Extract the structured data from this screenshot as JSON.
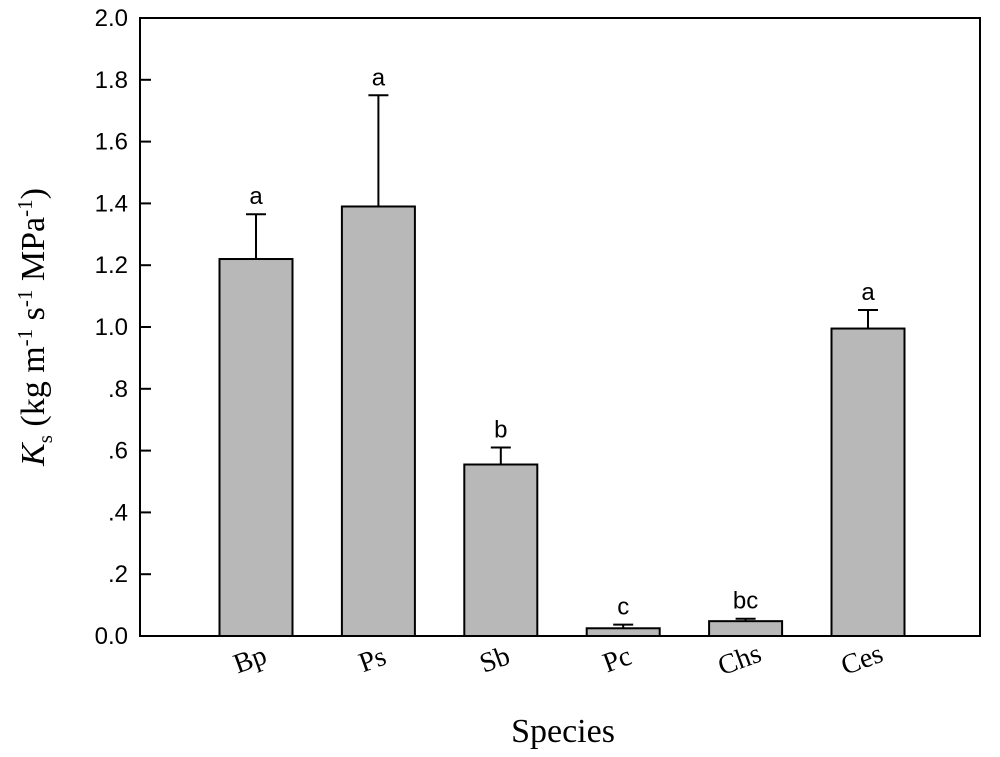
{
  "chart_data": {
    "type": "bar",
    "categories": [
      "Bp",
      "Ps",
      "Sb",
      "Pc",
      "Chs",
      "Ces"
    ],
    "values": [
      1.22,
      1.39,
      0.555,
      0.025,
      0.048,
      0.995
    ],
    "errors": [
      0.145,
      0.36,
      0.055,
      0.012,
      0.008,
      0.06
    ],
    "significance": [
      "a",
      "a",
      "b",
      "c",
      "bc",
      "a"
    ],
    "ylim": [
      0,
      2.0
    ],
    "yticks": [
      0,
      0.2,
      0.4,
      0.6,
      0.8,
      1.0,
      1.2,
      1.4,
      1.6,
      1.8,
      2.0
    ],
    "ytick_labels": [
      "0.0",
      ".2",
      ".4",
      ".6",
      ".8",
      "1.0",
      "1.2",
      "1.4",
      "1.6",
      "1.8",
      "2.0"
    ],
    "xlabel": "Species",
    "ylabel": {
      "symbol": "K",
      "symbol_sub": "s",
      "unit_part1": " (kg m",
      "sup1": "-1",
      "unit_part2": " s",
      "sup2": "-1",
      "unit_part3": " MPa",
      "sup3": "-1",
      "unit_part4": ")"
    },
    "bar_color": "#b8b8b8",
    "line_color": "#000000"
  }
}
